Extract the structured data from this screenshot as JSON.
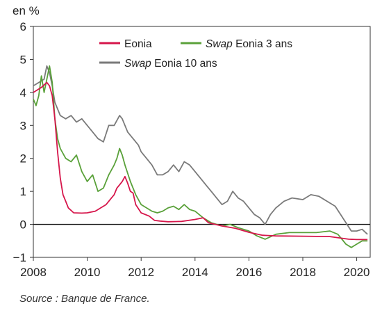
{
  "chart_data": {
    "type": "line",
    "ylabel": "en %",
    "source": "Source : Banque de France.",
    "xlim": [
      2008,
      2020.5
    ],
    "ylim": [
      -1,
      6
    ],
    "x_ticks": [
      2008,
      2010,
      2012,
      2014,
      2016,
      2018,
      2020
    ],
    "y_ticks": [
      -1,
      0,
      1,
      2,
      3,
      4,
      5,
      6
    ],
    "legend_position": "top-right",
    "series": [
      {
        "name_prefix": "",
        "name": "Eonia",
        "color": "#d6164b",
        "x": [
          2008.0,
          2008.3,
          2008.5,
          2008.6,
          2008.7,
          2008.8,
          2008.9,
          2009.0,
          2009.1,
          2009.2,
          2009.3,
          2009.5,
          2009.8,
          2010.0,
          2010.3,
          2010.5,
          2010.7,
          2010.9,
          2011.0,
          2011.1,
          2011.2,
          2011.3,
          2011.4,
          2011.5,
          2011.6,
          2011.7,
          2011.8,
          2012.0,
          2012.3,
          2012.5,
          2012.7,
          2013.0,
          2013.5,
          2014.0,
          2014.3,
          2014.5,
          2015.0,
          2015.5,
          2016.0,
          2016.5,
          2017.0,
          2018.0,
          2019.0,
          2019.7,
          2020.0,
          2020.4
        ],
        "values": [
          4.0,
          4.15,
          4.3,
          4.2,
          3.9,
          3.2,
          2.2,
          1.4,
          0.9,
          0.7,
          0.5,
          0.35,
          0.34,
          0.35,
          0.4,
          0.5,
          0.6,
          0.8,
          0.9,
          1.1,
          1.2,
          1.3,
          1.45,
          1.25,
          1.0,
          0.95,
          0.6,
          0.35,
          0.25,
          0.12,
          0.1,
          0.08,
          0.09,
          0.15,
          0.2,
          0.05,
          -0.05,
          -0.12,
          -0.24,
          -0.33,
          -0.35,
          -0.36,
          -0.37,
          -0.45,
          -0.46,
          -0.46
        ]
      },
      {
        "name_prefix": "Swap",
        "name": "Eonia 3 ans",
        "color": "#5aa13a",
        "x": [
          2008.0,
          2008.1,
          2008.2,
          2008.3,
          2008.4,
          2008.5,
          2008.6,
          2008.7,
          2008.8,
          2008.9,
          2009.0,
          2009.2,
          2009.4,
          2009.6,
          2009.8,
          2010.0,
          2010.2,
          2010.4,
          2010.6,
          2010.8,
          2011.0,
          2011.1,
          2011.2,
          2011.3,
          2011.4,
          2011.6,
          2011.8,
          2012.0,
          2012.2,
          2012.4,
          2012.6,
          2012.8,
          2013.0,
          2013.2,
          2013.4,
          2013.6,
          2013.8,
          2014.0,
          2014.3,
          2014.6,
          2015.0,
          2015.3,
          2015.6,
          2016.0,
          2016.3,
          2016.6,
          2017.0,
          2017.5,
          2018.0,
          2018.5,
          2019.0,
          2019.3,
          2019.6,
          2019.8,
          2020.0,
          2020.2,
          2020.4
        ],
        "values": [
          3.8,
          3.6,
          3.9,
          4.5,
          4.0,
          4.4,
          4.8,
          4.3,
          3.2,
          2.6,
          2.3,
          2.0,
          1.9,
          2.1,
          1.6,
          1.3,
          1.5,
          1.0,
          1.1,
          1.5,
          1.8,
          2.0,
          2.3,
          2.1,
          1.8,
          1.3,
          0.9,
          0.6,
          0.5,
          0.4,
          0.35,
          0.4,
          0.5,
          0.55,
          0.45,
          0.6,
          0.45,
          0.4,
          0.2,
          0.05,
          -0.05,
          0.0,
          -0.1,
          -0.2,
          -0.35,
          -0.45,
          -0.3,
          -0.25,
          -0.25,
          -0.25,
          -0.2,
          -0.3,
          -0.6,
          -0.7,
          -0.6,
          -0.5,
          -0.5
        ]
      },
      {
        "name_prefix": "Swap",
        "name": "Eonia 10 ans",
        "color": "#7a7a7a",
        "x": [
          2008.0,
          2008.2,
          2008.4,
          2008.5,
          2008.6,
          2008.7,
          2008.8,
          2008.9,
          2009.0,
          2009.2,
          2009.4,
          2009.6,
          2009.8,
          2010.0,
          2010.2,
          2010.4,
          2010.6,
          2010.8,
          2011.0,
          2011.2,
          2011.3,
          2011.5,
          2011.7,
          2011.9,
          2012.0,
          2012.2,
          2012.4,
          2012.6,
          2012.8,
          2013.0,
          2013.2,
          2013.4,
          2013.6,
          2013.8,
          2014.0,
          2014.2,
          2014.4,
          2014.6,
          2014.8,
          2015.0,
          2015.2,
          2015.4,
          2015.6,
          2015.8,
          2016.0,
          2016.2,
          2016.4,
          2016.6,
          2016.8,
          2017.0,
          2017.3,
          2017.6,
          2018.0,
          2018.3,
          2018.6,
          2018.9,
          2019.2,
          2019.4,
          2019.6,
          2019.8,
          2020.0,
          2020.2,
          2020.4
        ],
        "values": [
          4.2,
          4.3,
          4.4,
          4.8,
          4.6,
          4.2,
          3.7,
          3.5,
          3.3,
          3.2,
          3.3,
          3.1,
          3.2,
          3.0,
          2.8,
          2.6,
          2.5,
          3.0,
          3.0,
          3.3,
          3.2,
          2.8,
          2.6,
          2.4,
          2.2,
          2.0,
          1.8,
          1.5,
          1.5,
          1.6,
          1.8,
          1.6,
          1.9,
          1.8,
          1.6,
          1.4,
          1.2,
          1.0,
          0.8,
          0.6,
          0.7,
          1.0,
          0.8,
          0.7,
          0.5,
          0.3,
          0.2,
          0.0,
          0.3,
          0.5,
          0.7,
          0.8,
          0.75,
          0.9,
          0.85,
          0.7,
          0.55,
          0.3,
          0.05,
          -0.2,
          -0.2,
          -0.15,
          -0.3
        ]
      }
    ]
  }
}
